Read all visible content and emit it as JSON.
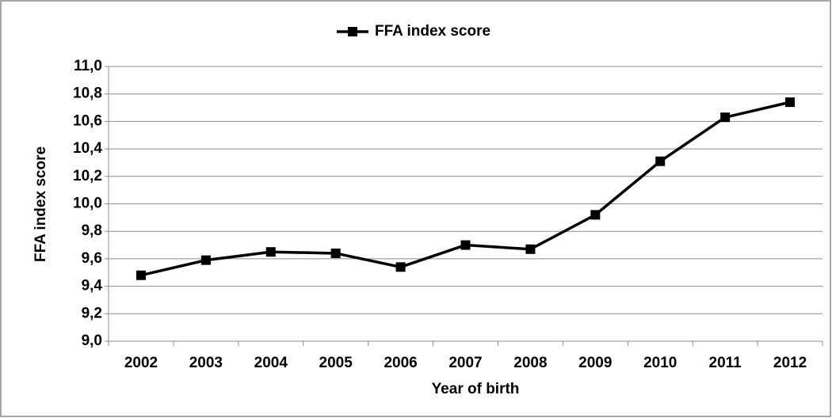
{
  "chart_data": {
    "type": "line",
    "x_label": "Year of birth",
    "y_label": "FFA index score",
    "categories": [
      "2002",
      "2003",
      "2004",
      "2005",
      "2006",
      "2007",
      "2008",
      "2009",
      "2010",
      "2011",
      "2012"
    ],
    "series": [
      {
        "name": "FFA index score",
        "color": "#000000",
        "values": [
          9.48,
          9.59,
          9.65,
          9.64,
          9.54,
          9.7,
          9.67,
          9.92,
          10.31,
          10.63,
          10.74
        ]
      }
    ],
    "ylim": [
      9.0,
      11.0
    ],
    "yticks": [
      {
        "value": 9.0,
        "label": "9,0"
      },
      {
        "value": 9.2,
        "label": "9,2"
      },
      {
        "value": 9.4,
        "label": "9,4"
      },
      {
        "value": 9.6,
        "label": "9,6"
      },
      {
        "value": 9.8,
        "label": "9,8"
      },
      {
        "value": 10.0,
        "label": "10,0"
      },
      {
        "value": 10.2,
        "label": "10,2"
      },
      {
        "value": 10.4,
        "label": "10,4"
      },
      {
        "value": 10.6,
        "label": "10,6"
      },
      {
        "value": 10.8,
        "label": "10,8"
      },
      {
        "value": 11.0,
        "label": "11,0"
      }
    ],
    "grid": true,
    "legend": "top"
  }
}
